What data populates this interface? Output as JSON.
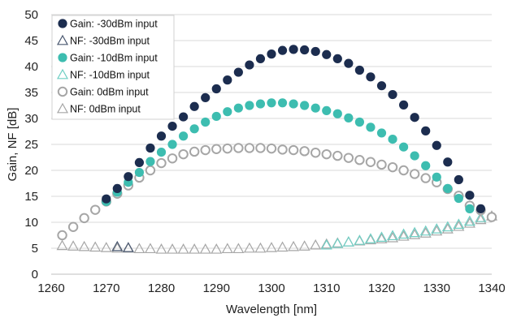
{
  "chart_data": {
    "type": "scatter",
    "xlabel": "Wavelength [nm]",
    "ylabel": "Gain, NF [dB]",
    "xlim": [
      1260,
      1340
    ],
    "ylim": [
      0,
      50
    ],
    "x_ticks": [
      "1260",
      "1270",
      "1280",
      "1290",
      "1300",
      "1310",
      "1320",
      "1330",
      "1340"
    ],
    "y_ticks": [
      "0",
      "5",
      "10",
      "15",
      "20",
      "25",
      "30",
      "35",
      "40",
      "45",
      "50"
    ],
    "grid": "horizontal",
    "legend_position": "top-left",
    "x": [
      1262,
      1264,
      1266,
      1268,
      1270,
      1272,
      1274,
      1276,
      1278,
      1280,
      1282,
      1284,
      1286,
      1288,
      1290,
      1292,
      1294,
      1296,
      1298,
      1300,
      1302,
      1304,
      1306,
      1308,
      1310,
      1312,
      1314,
      1316,
      1318,
      1320,
      1322,
      1324,
      1326,
      1328,
      1330,
      1332,
      1334,
      1336,
      1338,
      1340
    ],
    "series": [
      {
        "name": "Gain: -30dBm input",
        "marker": "filled-circle",
        "color": "#1c2d4f",
        "values": [
          null,
          null,
          null,
          null,
          14.5,
          16.5,
          18.8,
          21.5,
          24.3,
          26.6,
          28.5,
          30.3,
          32.3,
          34.0,
          35.7,
          37.4,
          38.9,
          40.3,
          41.5,
          42.4,
          43.1,
          43.3,
          43.2,
          42.9,
          42.3,
          41.5,
          40.6,
          39.3,
          38.0,
          36.3,
          34.6,
          32.6,
          30.2,
          27.6,
          24.8,
          21.6,
          18.2,
          15.2,
          12.6,
          null
        ]
      },
      {
        "name": "NF: -30dBm input",
        "marker": "hollow-triangle",
        "color": "#4a5870",
        "values": [
          null,
          null,
          null,
          null,
          null,
          5.3,
          5.1,
          null,
          null,
          null,
          null,
          null,
          null,
          null,
          null,
          null,
          null,
          null,
          null,
          null,
          null,
          null,
          null,
          null,
          null,
          null,
          null,
          null,
          null,
          null,
          null,
          null,
          null,
          null,
          null,
          null,
          null,
          null,
          null,
          null
        ]
      },
      {
        "name": "Gain: -10dBm input",
        "marker": "filled-circle",
        "color": "#3dbdb0",
        "values": [
          null,
          null,
          null,
          null,
          14.0,
          15.8,
          17.7,
          19.6,
          21.7,
          23.5,
          25.0,
          26.6,
          28.0,
          29.3,
          30.4,
          31.3,
          32.0,
          32.5,
          32.8,
          33.0,
          33.0,
          32.8,
          32.5,
          32.0,
          31.5,
          30.9,
          30.1,
          29.3,
          28.3,
          27.2,
          26.0,
          24.5,
          22.8,
          20.9,
          18.7,
          16.5,
          14.6,
          12.6,
          null,
          null
        ]
      },
      {
        "name": "NF: -10dBm input",
        "marker": "hollow-triangle",
        "color": "#6fcfc4",
        "values": [
          null,
          null,
          null,
          null,
          null,
          null,
          null,
          null,
          null,
          null,
          null,
          null,
          null,
          null,
          null,
          null,
          null,
          null,
          null,
          null,
          null,
          null,
          null,
          null,
          5.6,
          5.9,
          6.2,
          6.5,
          6.8,
          7.1,
          7.4,
          7.7,
          8.0,
          8.3,
          8.7,
          9.1,
          9.6,
          10.2,
          10.9,
          null
        ]
      },
      {
        "name": "Gain: 0dBm input",
        "marker": "hollow-circle",
        "color": "#a6a6a6",
        "values": [
          7.5,
          9.1,
          10.8,
          12.4,
          14.0,
          15.5,
          17.1,
          18.6,
          20.0,
          21.4,
          22.3,
          23.1,
          23.6,
          23.9,
          24.1,
          24.2,
          24.3,
          24.3,
          24.3,
          24.2,
          24.0,
          23.9,
          23.7,
          23.4,
          23.1,
          22.8,
          22.4,
          22.0,
          21.6,
          21.1,
          20.6,
          20.0,
          19.3,
          18.5,
          17.7,
          16.4,
          15.1,
          13.2,
          12.3,
          11.0
        ]
      },
      {
        "name": "NF: 0dBm input",
        "marker": "hollow-triangle",
        "color": "#a6a6a6",
        "values": [
          5.5,
          5.4,
          5.3,
          5.2,
          5.1,
          5.0,
          5.0,
          4.9,
          4.9,
          4.8,
          4.8,
          4.8,
          4.8,
          4.8,
          4.8,
          4.9,
          4.9,
          5.0,
          5.0,
          5.1,
          5.2,
          5.3,
          5.4,
          5.6,
          5.8,
          6.0,
          6.2,
          6.4,
          6.6,
          6.8,
          7.0,
          7.3,
          7.6,
          7.9,
          8.3,
          8.7,
          9.2,
          9.8,
          10.5,
          11.2
        ]
      }
    ]
  }
}
